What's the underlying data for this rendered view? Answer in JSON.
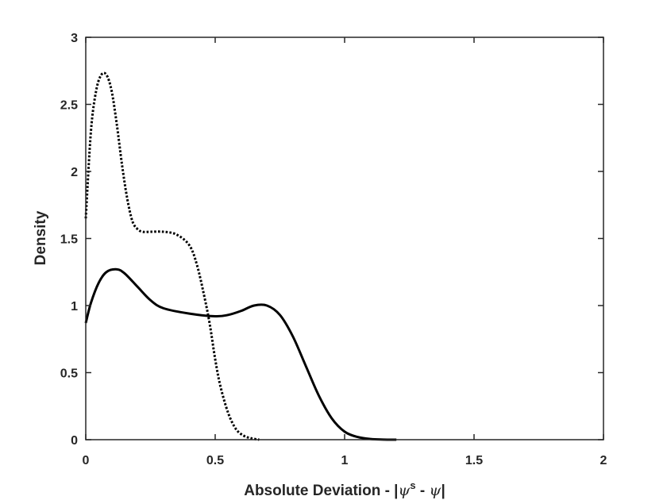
{
  "chart_data": {
    "type": "line",
    "title": "",
    "xlabel": {
      "prefix": "Absolute Deviation - |",
      "psi": "ψ",
      "superscript": "s",
      "middle": " - ",
      "suffix": "|"
    },
    "ylabel": "Density",
    "xlim": [
      0,
      2
    ],
    "ylim": [
      0,
      3
    ],
    "xticks": [
      0,
      0.5,
      1,
      1.5,
      2
    ],
    "xtick_labels": [
      "0",
      "0.5",
      "1",
      "1.5",
      "2"
    ],
    "yticks": [
      0,
      0.5,
      1,
      1.5,
      2,
      2.5,
      3
    ],
    "ytick_labels": [
      "0",
      "0.5",
      "1",
      "1.5",
      "2",
      "2.5",
      "3"
    ],
    "grid": false,
    "legend": "none",
    "series": [
      {
        "style": "dotted",
        "color": "#000000",
        "x": [
          0,
          0.02,
          0.04,
          0.06,
          0.08,
          0.1,
          0.12,
          0.14,
          0.16,
          0.18,
          0.2,
          0.22,
          0.25,
          0.3,
          0.35,
          0.4,
          0.43,
          0.46,
          0.48,
          0.5,
          0.52,
          0.55,
          0.58,
          0.61,
          0.64,
          0.67
        ],
        "y": [
          1.65,
          2.3,
          2.6,
          2.72,
          2.72,
          2.6,
          2.35,
          2.05,
          1.8,
          1.63,
          1.57,
          1.55,
          1.55,
          1.55,
          1.53,
          1.45,
          1.3,
          1.05,
          0.85,
          0.6,
          0.4,
          0.2,
          0.08,
          0.03,
          0.01,
          0.0
        ]
      },
      {
        "style": "solid",
        "color": "#000000",
        "x": [
          0,
          0.02,
          0.05,
          0.08,
          0.12,
          0.15,
          0.2,
          0.25,
          0.3,
          0.4,
          0.5,
          0.55,
          0.6,
          0.65,
          0.7,
          0.75,
          0.8,
          0.85,
          0.9,
          0.95,
          1.0,
          1.05,
          1.1,
          1.15,
          1.2
        ],
        "y": [
          0.87,
          1.02,
          1.17,
          1.25,
          1.27,
          1.24,
          1.14,
          1.04,
          0.98,
          0.94,
          0.92,
          0.93,
          0.96,
          1.0,
          1.0,
          0.93,
          0.77,
          0.55,
          0.33,
          0.16,
          0.06,
          0.02,
          0.005,
          0.001,
          0.0
        ]
      }
    ]
  }
}
